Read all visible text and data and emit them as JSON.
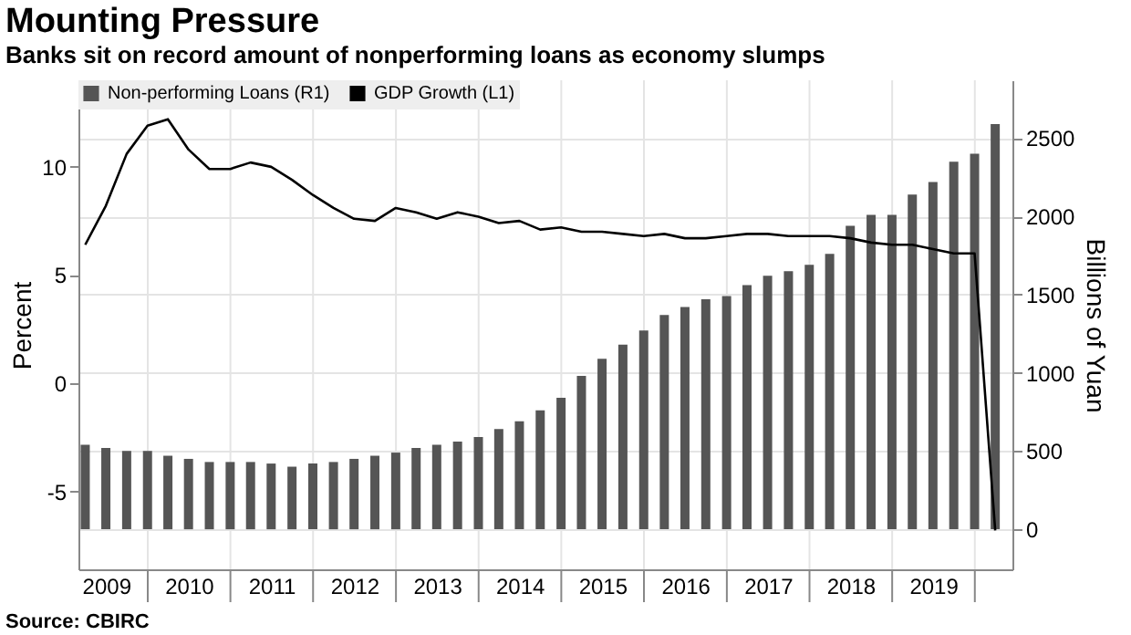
{
  "chart_data": {
    "type": "bar",
    "title": "Mounting Pressure",
    "subtitle": "Banks sit on record amount of nonperforming loans as economy slumps",
    "ylabel": "Percent",
    "y2label": "Billions of Yuan",
    "annotations": [
      "Source: CBIRC"
    ],
    "x": [
      "2009-03-31",
      "2009-06-30",
      "2009-09-30",
      "2009-12-31",
      "2010-03-31",
      "2010-06-30",
      "2010-09-30",
      "2010-12-31",
      "2011-03-31",
      "2011-06-30",
      "2011-09-30",
      "2011-12-31",
      "2012-03-31",
      "2012-06-30",
      "2012-09-30",
      "2012-12-31",
      "2013-03-31",
      "2013-06-30",
      "2013-09-30",
      "2013-12-31",
      "2014-03-31",
      "2014-06-30",
      "2014-09-30",
      "2014-12-31",
      "2015-03-31",
      "2015-06-30",
      "2015-09-30",
      "2015-12-31",
      "2016-03-31",
      "2016-06-30",
      "2016-09-30",
      "2016-12-31",
      "2017-03-31",
      "2017-06-30",
      "2017-09-30",
      "2017-12-31",
      "2018-03-31",
      "2018-06-30",
      "2018-09-30",
      "2018-12-31",
      "2019-03-31",
      "2019-06-30",
      "2019-09-30",
      "2019-12-31",
      "2020-03-31"
    ],
    "series": [
      {
        "name": "Non-performing Loans (R1)",
        "type": "bar",
        "axis": "y2",
        "color": "#555555",
        "values": [
          540,
          520,
          500,
          500,
          470,
          450,
          430,
          430,
          430,
          420,
          400,
          420,
          430,
          450,
          470,
          490,
          520,
          540,
          560,
          590,
          640,
          690,
          760,
          840,
          980,
          1090,
          1180,
          1270,
          1370,
          1420,
          1470,
          1490,
          1560,
          1620,
          1650,
          1690,
          1760,
          1940,
          2010,
          2010,
          2140,
          2220,
          2350,
          2400,
          2590
        ]
      },
      {
        "name": "GDP Growth (L1)",
        "type": "line",
        "axis": "y",
        "color": "#000000",
        "values": [
          6.4,
          8.2,
          10.6,
          11.9,
          12.2,
          10.8,
          9.9,
          9.9,
          10.2,
          10.0,
          9.4,
          8.7,
          8.1,
          7.6,
          7.5,
          8.1,
          7.9,
          7.6,
          7.9,
          7.7,
          7.4,
          7.5,
          7.1,
          7.2,
          7.0,
          7.0,
          6.9,
          6.8,
          6.9,
          6.7,
          6.7,
          6.8,
          6.9,
          6.9,
          6.8,
          6.8,
          6.8,
          6.7,
          6.5,
          6.4,
          6.4,
          6.2,
          6.0,
          6.0,
          -6.8
        ]
      }
    ],
    "xlim": [
      "2009-03-01",
      "2020-06-15"
    ],
    "xticks": [
      {
        "value": "2009-07-01",
        "label": "2009"
      },
      {
        "value": "2010-01-01",
        "label": null
      },
      {
        "value": "2010-07-01",
        "label": "2010"
      },
      {
        "value": "2011-01-01",
        "label": null
      },
      {
        "value": "2011-07-01",
        "label": "2011"
      },
      {
        "value": "2012-01-01",
        "label": null
      },
      {
        "value": "2012-07-01",
        "label": "2012"
      },
      {
        "value": "2013-01-01",
        "label": null
      },
      {
        "value": "2013-07-01",
        "label": "2013"
      },
      {
        "value": "2014-01-01",
        "label": null
      },
      {
        "value": "2014-07-01",
        "label": "2014"
      },
      {
        "value": "2015-01-01",
        "label": null
      },
      {
        "value": "2015-07-01",
        "label": "2015"
      },
      {
        "value": "2016-01-01",
        "label": null
      },
      {
        "value": "2016-07-01",
        "label": "2016"
      },
      {
        "value": "2017-01-01",
        "label": null
      },
      {
        "value": "2017-07-01",
        "label": "2017"
      },
      {
        "value": "2018-01-01",
        "label": null
      },
      {
        "value": "2018-07-01",
        "label": "2018"
      },
      {
        "value": "2019-01-01",
        "label": null
      },
      {
        "value": "2019-07-01",
        "label": "2019"
      },
      {
        "value": "2020-01-01",
        "label": null
      }
    ],
    "ylim": [
      -8.6,
      14.0
    ],
    "yticks": [
      -5,
      0,
      5,
      10
    ],
    "y2lim": [
      -256,
      2870
    ],
    "y2ticks": [
      0,
      500,
      1000,
      1500,
      2000,
      2500
    ],
    "grid": true,
    "legend": "top left"
  }
}
